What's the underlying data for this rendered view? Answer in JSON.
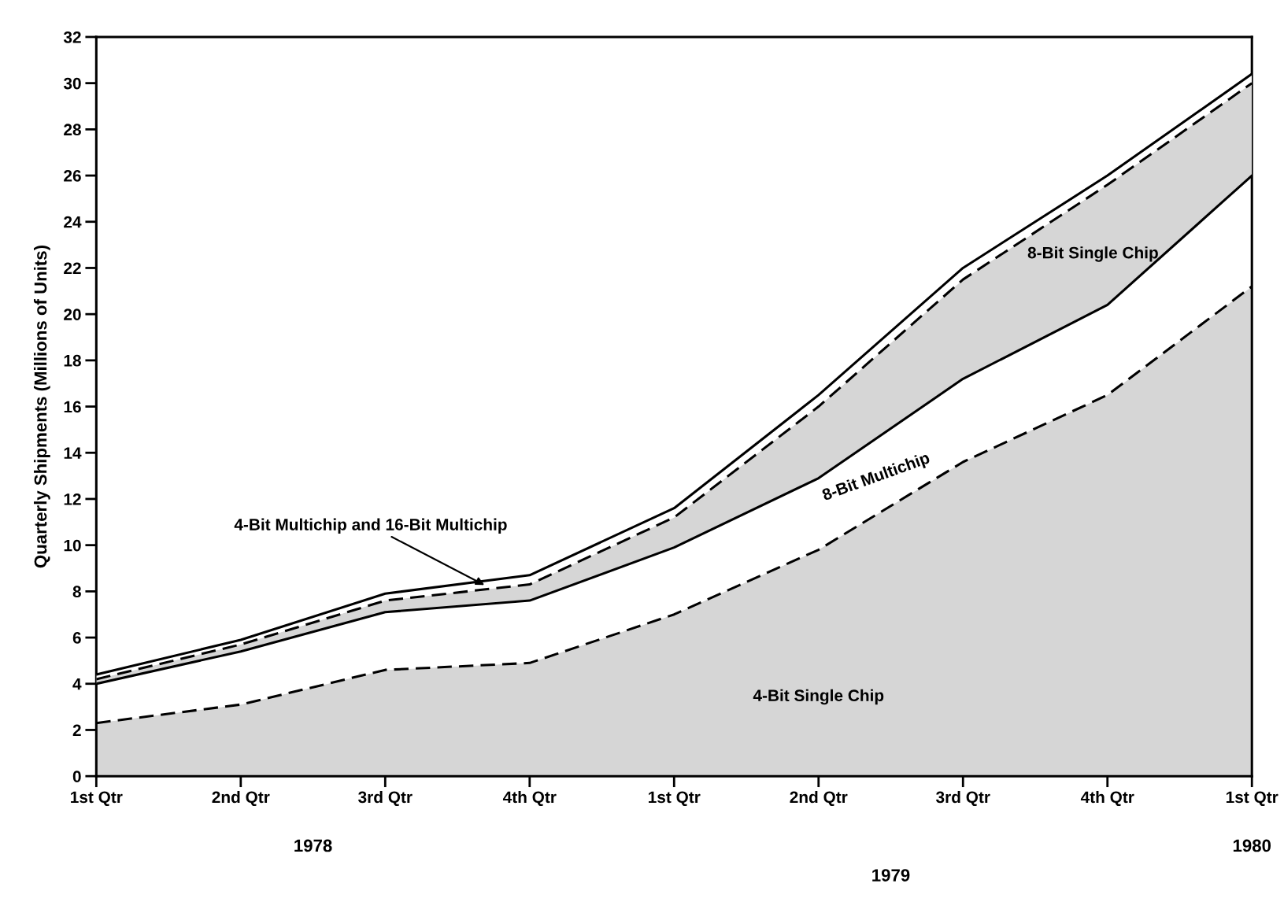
{
  "chart_data": {
    "type": "area",
    "stacked": true,
    "ylabel": "Quarterly Shipments (Millions of Units)",
    "categories": [
      "1st Qtr",
      "2nd Qtr",
      "3rd Qtr",
      "4th Qtr",
      "1st Qtr",
      "2nd Qtr",
      "3rd Qtr",
      "4th Qtr",
      "1st Qtr"
    ],
    "annotations": [
      "1978",
      "1979",
      "1980"
    ],
    "series": [
      {
        "name": "4-Bit Single Chip",
        "color": "#d6d6d6",
        "line_style": "dashed",
        "values": [
          2.3,
          3.1,
          4.6,
          4.9,
          7.0,
          9.8,
          13.6,
          16.5,
          21.2
        ]
      },
      {
        "name": "8-Bit Multichip",
        "color": "#ffffff",
        "line_style": "solid",
        "values": [
          1.7,
          2.3,
          2.5,
          2.7,
          2.9,
          3.1,
          3.6,
          3.9,
          4.8
        ]
      },
      {
        "name": "8-Bit Single Chip",
        "color": "#d6d6d6",
        "line_style": "dashed",
        "values": [
          0.2,
          0.3,
          0.5,
          0.7,
          1.3,
          3.1,
          4.3,
          5.2,
          4.0
        ]
      },
      {
        "name": "4-Bit Multichip and 16-Bit Multichip",
        "color": "#ffffff",
        "line_style": "solid",
        "values": [
          0.2,
          0.2,
          0.3,
          0.4,
          0.4,
          0.5,
          0.5,
          0.4,
          0.4
        ]
      }
    ],
    "ylim": [
      0,
      32
    ],
    "yticks": [
      0,
      2,
      4,
      6,
      8,
      10,
      12,
      14,
      16,
      18,
      20,
      22,
      24,
      26,
      28,
      30,
      32
    ],
    "grid": false,
    "legend": false
  }
}
